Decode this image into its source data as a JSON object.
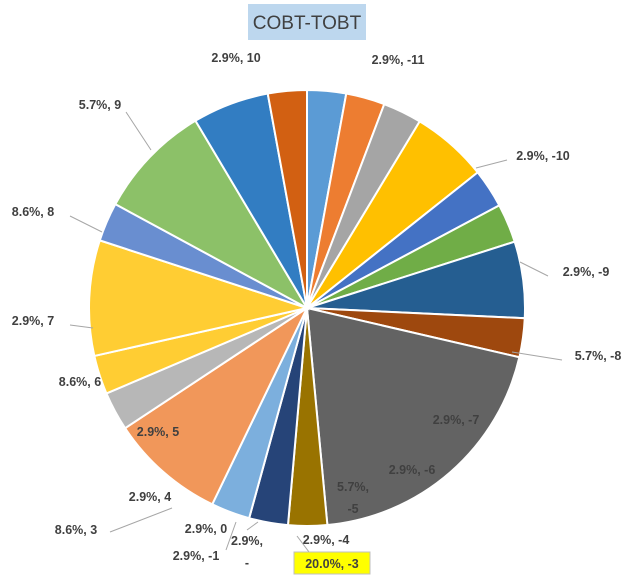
{
  "chart_data": {
    "type": "pie",
    "title": "COBT-TOBT",
    "start_angle_deg": 0,
    "direction": "clockwise",
    "legend": "none",
    "slices": [
      {
        "category": "-11",
        "value": 2.9,
        "label": "2.9%, -11",
        "color": "#5B9BD5"
      },
      {
        "category": "-10",
        "value": 2.9,
        "label": "2.9%, -10",
        "color": "#ED7D31"
      },
      {
        "category": "-9",
        "value": 2.9,
        "label": "2.9%, -9",
        "color": "#A5A5A5"
      },
      {
        "category": "-8",
        "value": 5.7,
        "label": "5.7%, -8",
        "color": "#FFC000"
      },
      {
        "category": "-7",
        "value": 2.9,
        "label": "2.9%, -7",
        "color": "#4472C4"
      },
      {
        "category": "-6",
        "value": 2.9,
        "label": "2.9%, -6",
        "color": "#70AD47"
      },
      {
        "category": "-5",
        "value": 5.7,
        "label": "5.7%, -5",
        "color": "#255E91"
      },
      {
        "category": "-4",
        "value": 2.9,
        "label": "2.9%, -4",
        "color": "#9E480E"
      },
      {
        "category": "-3",
        "value": 20.0,
        "label": "20.0%, -3",
        "color": "#636363",
        "highlight": "#FFFF00"
      },
      {
        "category": "-2",
        "value": 2.9,
        "label": "2.9%, -",
        "color": "#997300"
      },
      {
        "category": "-1",
        "value": 2.9,
        "label": "2.9%, -1",
        "color": "#264478"
      },
      {
        "category": "0",
        "value": 2.9,
        "label": "2.9%, 0",
        "color": "#7CAFDD"
      },
      {
        "category": "3",
        "value": 8.6,
        "label": "8.6%, 3",
        "color": "#F1975A"
      },
      {
        "category": "4",
        "value": 2.9,
        "label": "2.9%, 4",
        "color": "#B7B7B7"
      },
      {
        "category": "5",
        "value": 2.9,
        "label": "2.9%, 5",
        "color": "#FFCD33"
      },
      {
        "category": "6",
        "value": 8.6,
        "label": "8.6%, 6",
        "color": "#FFCD33"
      },
      {
        "category": "7",
        "value": 2.9,
        "label": "2.9%, 7",
        "color": "#698ED0"
      },
      {
        "category": "8",
        "value": 8.6,
        "label": "8.6%, 8",
        "color": "#8CC168"
      },
      {
        "category": "9",
        "value": 5.7,
        "label": "5.7%, 9",
        "color": "#327DC2"
      },
      {
        "category": "10",
        "value": 2.9,
        "label": "2.9%, 10",
        "color": "#D26012"
      }
    ]
  }
}
